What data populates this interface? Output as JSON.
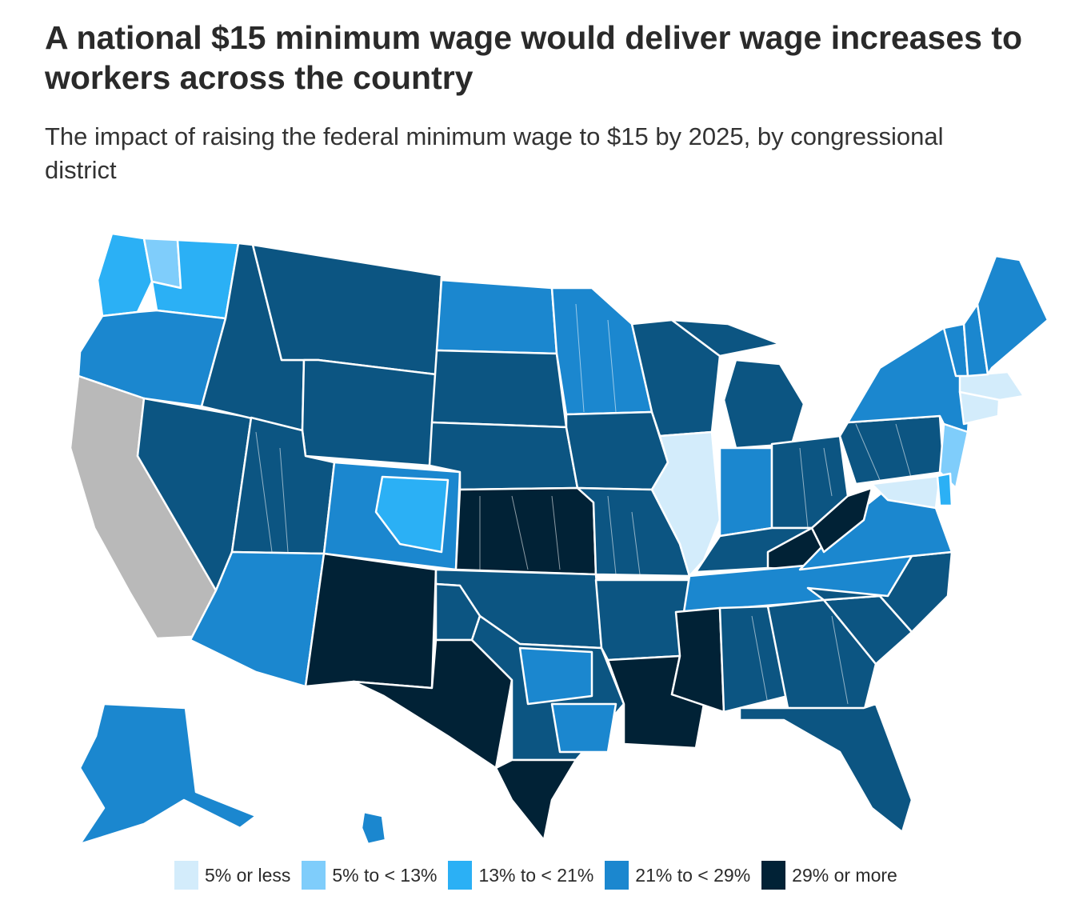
{
  "header": {
    "title": "A national $15 minimum wage would deliver wage increases to workers across the country",
    "subtitle": "The impact of raising the federal minimum wage to $15 by 2025, by congressional district"
  },
  "palette": {
    "c1": "#d3ecfb",
    "c2": "#7fcdfb",
    "c3": "#2bb0f5",
    "c4": "#1b87cf",
    "c5": "#0c5582",
    "c6": "#012236",
    "nodata": "#b9b9b9",
    "border": "#ffffff"
  },
  "legend": {
    "items": [
      {
        "label": "5% or less",
        "color": "#d3ecfb"
      },
      {
        "label": "5% to < 13%",
        "color": "#7fcdfb"
      },
      {
        "label": "13% to < 21%",
        "color": "#2bb0f5"
      },
      {
        "label": "21% to < 29%",
        "color": "#1b87cf"
      },
      {
        "label": "29% or more",
        "color": "#012236"
      }
    ]
  },
  "regions": [
    {
      "name": "washington-west",
      "cat": "c3"
    },
    {
      "name": "washington-seattle",
      "cat": "c2"
    },
    {
      "name": "washington-east",
      "cat": "c3"
    },
    {
      "name": "oregon",
      "cat": "c4"
    },
    {
      "name": "california",
      "cat": "nodata"
    },
    {
      "name": "nevada",
      "cat": "c5"
    },
    {
      "name": "idaho",
      "cat": "c5"
    },
    {
      "name": "montana",
      "cat": "c5"
    },
    {
      "name": "wyoming",
      "cat": "c5"
    },
    {
      "name": "utah",
      "cat": "c5"
    },
    {
      "name": "arizona",
      "cat": "c4"
    },
    {
      "name": "colorado",
      "cat": "c4"
    },
    {
      "name": "colorado-denver",
      "cat": "c3"
    },
    {
      "name": "new-mexico",
      "cat": "c6"
    },
    {
      "name": "north-dakota",
      "cat": "c4"
    },
    {
      "name": "south-dakota",
      "cat": "c5"
    },
    {
      "name": "nebraska",
      "cat": "c5"
    },
    {
      "name": "kansas",
      "cat": "c6"
    },
    {
      "name": "oklahoma",
      "cat": "c5"
    },
    {
      "name": "texas-panhandle",
      "cat": "c5"
    },
    {
      "name": "texas-west",
      "cat": "c6"
    },
    {
      "name": "texas-central",
      "cat": "c5"
    },
    {
      "name": "texas-dfw",
      "cat": "c4"
    },
    {
      "name": "texas-houston",
      "cat": "c4"
    },
    {
      "name": "texas-south",
      "cat": "c6"
    },
    {
      "name": "minnesota",
      "cat": "c4"
    },
    {
      "name": "iowa",
      "cat": "c5"
    },
    {
      "name": "missouri",
      "cat": "c5"
    },
    {
      "name": "arkansas",
      "cat": "c5"
    },
    {
      "name": "louisiana",
      "cat": "c6"
    },
    {
      "name": "wisconsin",
      "cat": "c5"
    },
    {
      "name": "illinois",
      "cat": "c1"
    },
    {
      "name": "michigan",
      "cat": "c5"
    },
    {
      "name": "michigan-up",
      "cat": "c5"
    },
    {
      "name": "indiana",
      "cat": "c4"
    },
    {
      "name": "ohio",
      "cat": "c5"
    },
    {
      "name": "kentucky",
      "cat": "c5"
    },
    {
      "name": "kentucky-east",
      "cat": "c6"
    },
    {
      "name": "tennessee",
      "cat": "c4"
    },
    {
      "name": "mississippi",
      "cat": "c6"
    },
    {
      "name": "alabama",
      "cat": "c5"
    },
    {
      "name": "georgia",
      "cat": "c5"
    },
    {
      "name": "florida",
      "cat": "c5"
    },
    {
      "name": "south-carolina",
      "cat": "c5"
    },
    {
      "name": "north-carolina",
      "cat": "c5"
    },
    {
      "name": "virginia",
      "cat": "c4"
    },
    {
      "name": "west-virginia",
      "cat": "c6"
    },
    {
      "name": "pennsylvania",
      "cat": "c5"
    },
    {
      "name": "new-york",
      "cat": "c4"
    },
    {
      "name": "new-jersey",
      "cat": "c2"
    },
    {
      "name": "maryland",
      "cat": "c1"
    },
    {
      "name": "delaware",
      "cat": "c3"
    },
    {
      "name": "connecticut",
      "cat": "c1"
    },
    {
      "name": "massachusetts",
      "cat": "c1"
    },
    {
      "name": "vermont",
      "cat": "c4"
    },
    {
      "name": "new-hampshire",
      "cat": "c4"
    },
    {
      "name": "maine",
      "cat": "c4"
    },
    {
      "name": "alaska",
      "cat": "c4"
    },
    {
      "name": "hawaii",
      "cat": "c4"
    }
  ]
}
